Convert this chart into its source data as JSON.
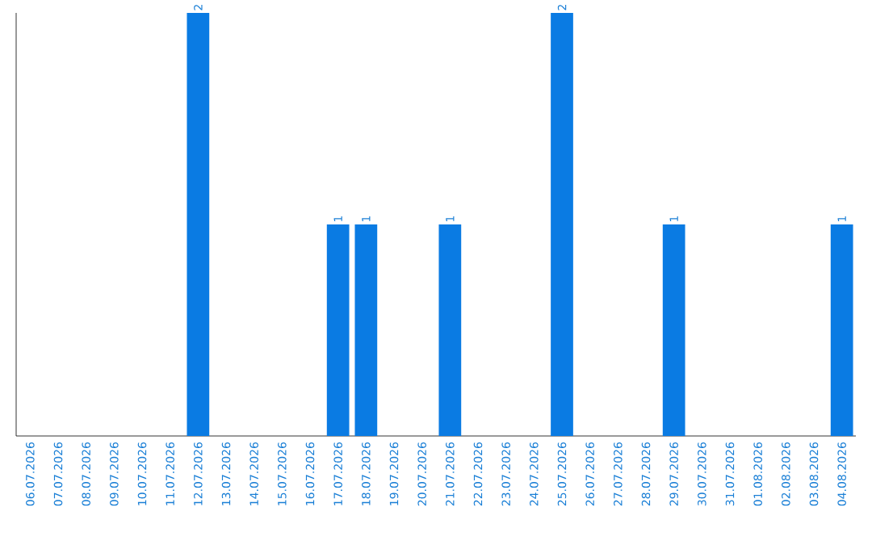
{
  "chart_data": {
    "type": "bar",
    "categories": [
      "06.07.2026",
      "07.07.2026",
      "08.07.2026",
      "09.07.2026",
      "10.07.2026",
      "11.07.2026",
      "12.07.2026",
      "13.07.2026",
      "14.07.2026",
      "15.07.2026",
      "16.07.2026",
      "17.07.2026",
      "18.07.2026",
      "19.07.2026",
      "20.07.2026",
      "21.07.2026",
      "22.07.2026",
      "23.07.2026",
      "24.07.2026",
      "25.07.2026",
      "26.07.2026",
      "27.07.2026",
      "28.07.2026",
      "29.07.2026",
      "30.07.2026",
      "31.07.2026",
      "01.08.2026",
      "02.08.2026",
      "03.08.2026",
      "04.08.2026"
    ],
    "values": [
      0,
      0,
      0,
      0,
      0,
      0,
      2,
      0,
      0,
      0,
      0,
      1,
      1,
      0,
      0,
      1,
      0,
      0,
      0,
      2,
      0,
      0,
      0,
      1,
      0,
      0,
      0,
      0,
      0,
      1
    ],
    "value_labels": [
      null,
      null,
      null,
      null,
      null,
      null,
      "2",
      null,
      null,
      null,
      null,
      "1",
      "1",
      null,
      null,
      "1",
      null,
      null,
      null,
      "2",
      null,
      null,
      null,
      "1",
      null,
      null,
      null,
      null,
      null,
      "1"
    ],
    "color": "#0a7be3"
  }
}
